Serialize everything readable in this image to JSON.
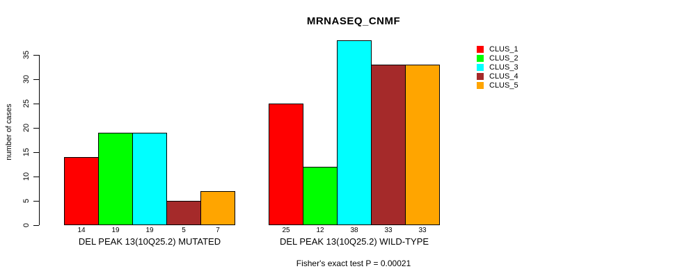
{
  "title": "MRNASEQ_CNMF",
  "y_axis": {
    "label": "number of cases",
    "ticks": [
      0,
      5,
      10,
      15,
      20,
      25,
      30,
      35
    ]
  },
  "footer": "Fisher's exact test P = 0.00021",
  "legend": {
    "items": [
      {
        "label": "CLUS_1",
        "color": "#FF0000"
      },
      {
        "label": "CLUS_2",
        "color": "#00FF00"
      },
      {
        "label": "CLUS_3",
        "color": "#00FFFF"
      },
      {
        "label": "CLUS_4",
        "color": "#A52A2A"
      },
      {
        "label": "CLUS_5",
        "color": "#FFA500"
      }
    ]
  },
  "chart_data": {
    "type": "bar",
    "title": "MRNASEQ_CNMF",
    "ylabel": "number of cases",
    "ylim": [
      0,
      38
    ],
    "yticks": [
      0,
      5,
      10,
      15,
      20,
      25,
      30,
      35
    ],
    "grid": false,
    "legend_position": "top-right",
    "bar_value_labels": true,
    "categories": [
      "DEL PEAK 13(10Q25.2) MUTATED",
      "DEL PEAK 13(10Q25.2) WILD-TYPE"
    ],
    "series": [
      {
        "name": "CLUS_1",
        "color": "#FF0000",
        "values": [
          14,
          25
        ]
      },
      {
        "name": "CLUS_2",
        "color": "#00FF00",
        "values": [
          19,
          12
        ]
      },
      {
        "name": "CLUS_3",
        "color": "#00FFFF",
        "values": [
          19,
          38
        ]
      },
      {
        "name": "CLUS_4",
        "color": "#A52A2A",
        "values": [
          5,
          33
        ]
      },
      {
        "name": "CLUS_5",
        "color": "#FFA500",
        "values": [
          7,
          33
        ]
      }
    ],
    "annotation": "Fisher's exact test P = 0.00021"
  }
}
